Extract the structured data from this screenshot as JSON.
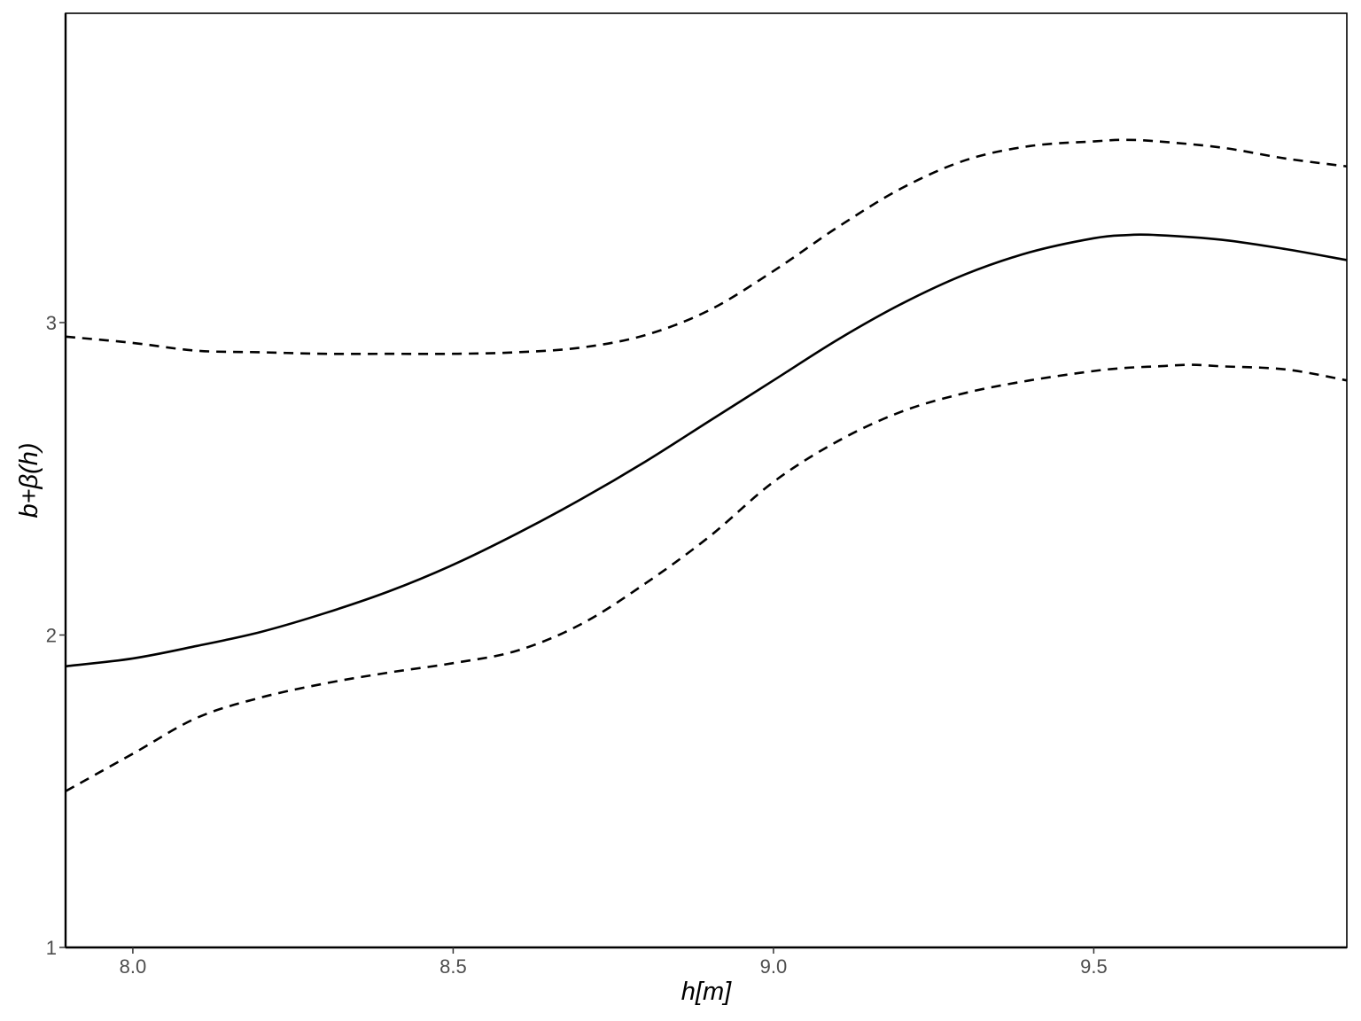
{
  "chart_data": {
    "type": "line",
    "xlabel": "h[m]",
    "ylabel": "b+β(h)",
    "xlim": [
      7.895,
      9.895
    ],
    "ylim": [
      1.0,
      3.99
    ],
    "x_ticks": [
      8.0,
      8.5,
      9.0,
      9.5
    ],
    "x_tick_labels": [
      "8.0",
      "8.5",
      "9.0",
      "9.5"
    ],
    "y_ticks": [
      1,
      2,
      3
    ],
    "y_tick_labels": [
      "1",
      "2",
      "3"
    ],
    "grid": false,
    "legend": "none",
    "series": [
      {
        "style": "solid",
        "color": "#000000",
        "x": [
          7.895,
          8.0,
          8.1,
          8.2,
          8.3,
          8.4,
          8.5,
          8.6,
          8.7,
          8.8,
          8.9,
          9.0,
          9.1,
          9.2,
          9.3,
          9.4,
          9.5,
          9.55,
          9.6,
          9.7,
          9.8,
          9.895
        ],
        "y": [
          1.9,
          1.925,
          1.965,
          2.01,
          2.07,
          2.14,
          2.225,
          2.325,
          2.435,
          2.555,
          2.685,
          2.815,
          2.945,
          3.06,
          3.155,
          3.225,
          3.27,
          3.28,
          3.28,
          3.265,
          3.235,
          3.2
        ]
      },
      {
        "style": "dashed",
        "color": "#000000",
        "x": [
          7.895,
          8.0,
          8.1,
          8.2,
          8.3,
          8.4,
          8.5,
          8.6,
          8.7,
          8.8,
          8.9,
          9.0,
          9.1,
          9.2,
          9.3,
          9.4,
          9.5,
          9.55,
          9.6,
          9.7,
          9.8,
          9.895
        ],
        "y": [
          2.955,
          2.935,
          2.91,
          2.905,
          2.9,
          2.9,
          2.9,
          2.905,
          2.92,
          2.96,
          3.04,
          3.165,
          3.305,
          3.43,
          3.52,
          3.565,
          3.58,
          3.585,
          3.58,
          3.56,
          3.525,
          3.5
        ]
      },
      {
        "style": "dashed",
        "color": "#000000",
        "x": [
          7.895,
          8.0,
          8.1,
          8.2,
          8.3,
          8.4,
          8.5,
          8.6,
          8.7,
          8.8,
          8.9,
          9.0,
          9.1,
          9.2,
          9.3,
          9.4,
          9.5,
          9.55,
          9.6,
          9.65,
          9.7,
          9.8,
          9.895
        ],
        "y": [
          1.5,
          1.62,
          1.735,
          1.8,
          1.845,
          1.88,
          1.91,
          1.95,
          2.035,
          2.165,
          2.315,
          2.49,
          2.62,
          2.715,
          2.775,
          2.815,
          2.845,
          2.855,
          2.86,
          2.865,
          2.86,
          2.85,
          2.815
        ]
      }
    ]
  }
}
